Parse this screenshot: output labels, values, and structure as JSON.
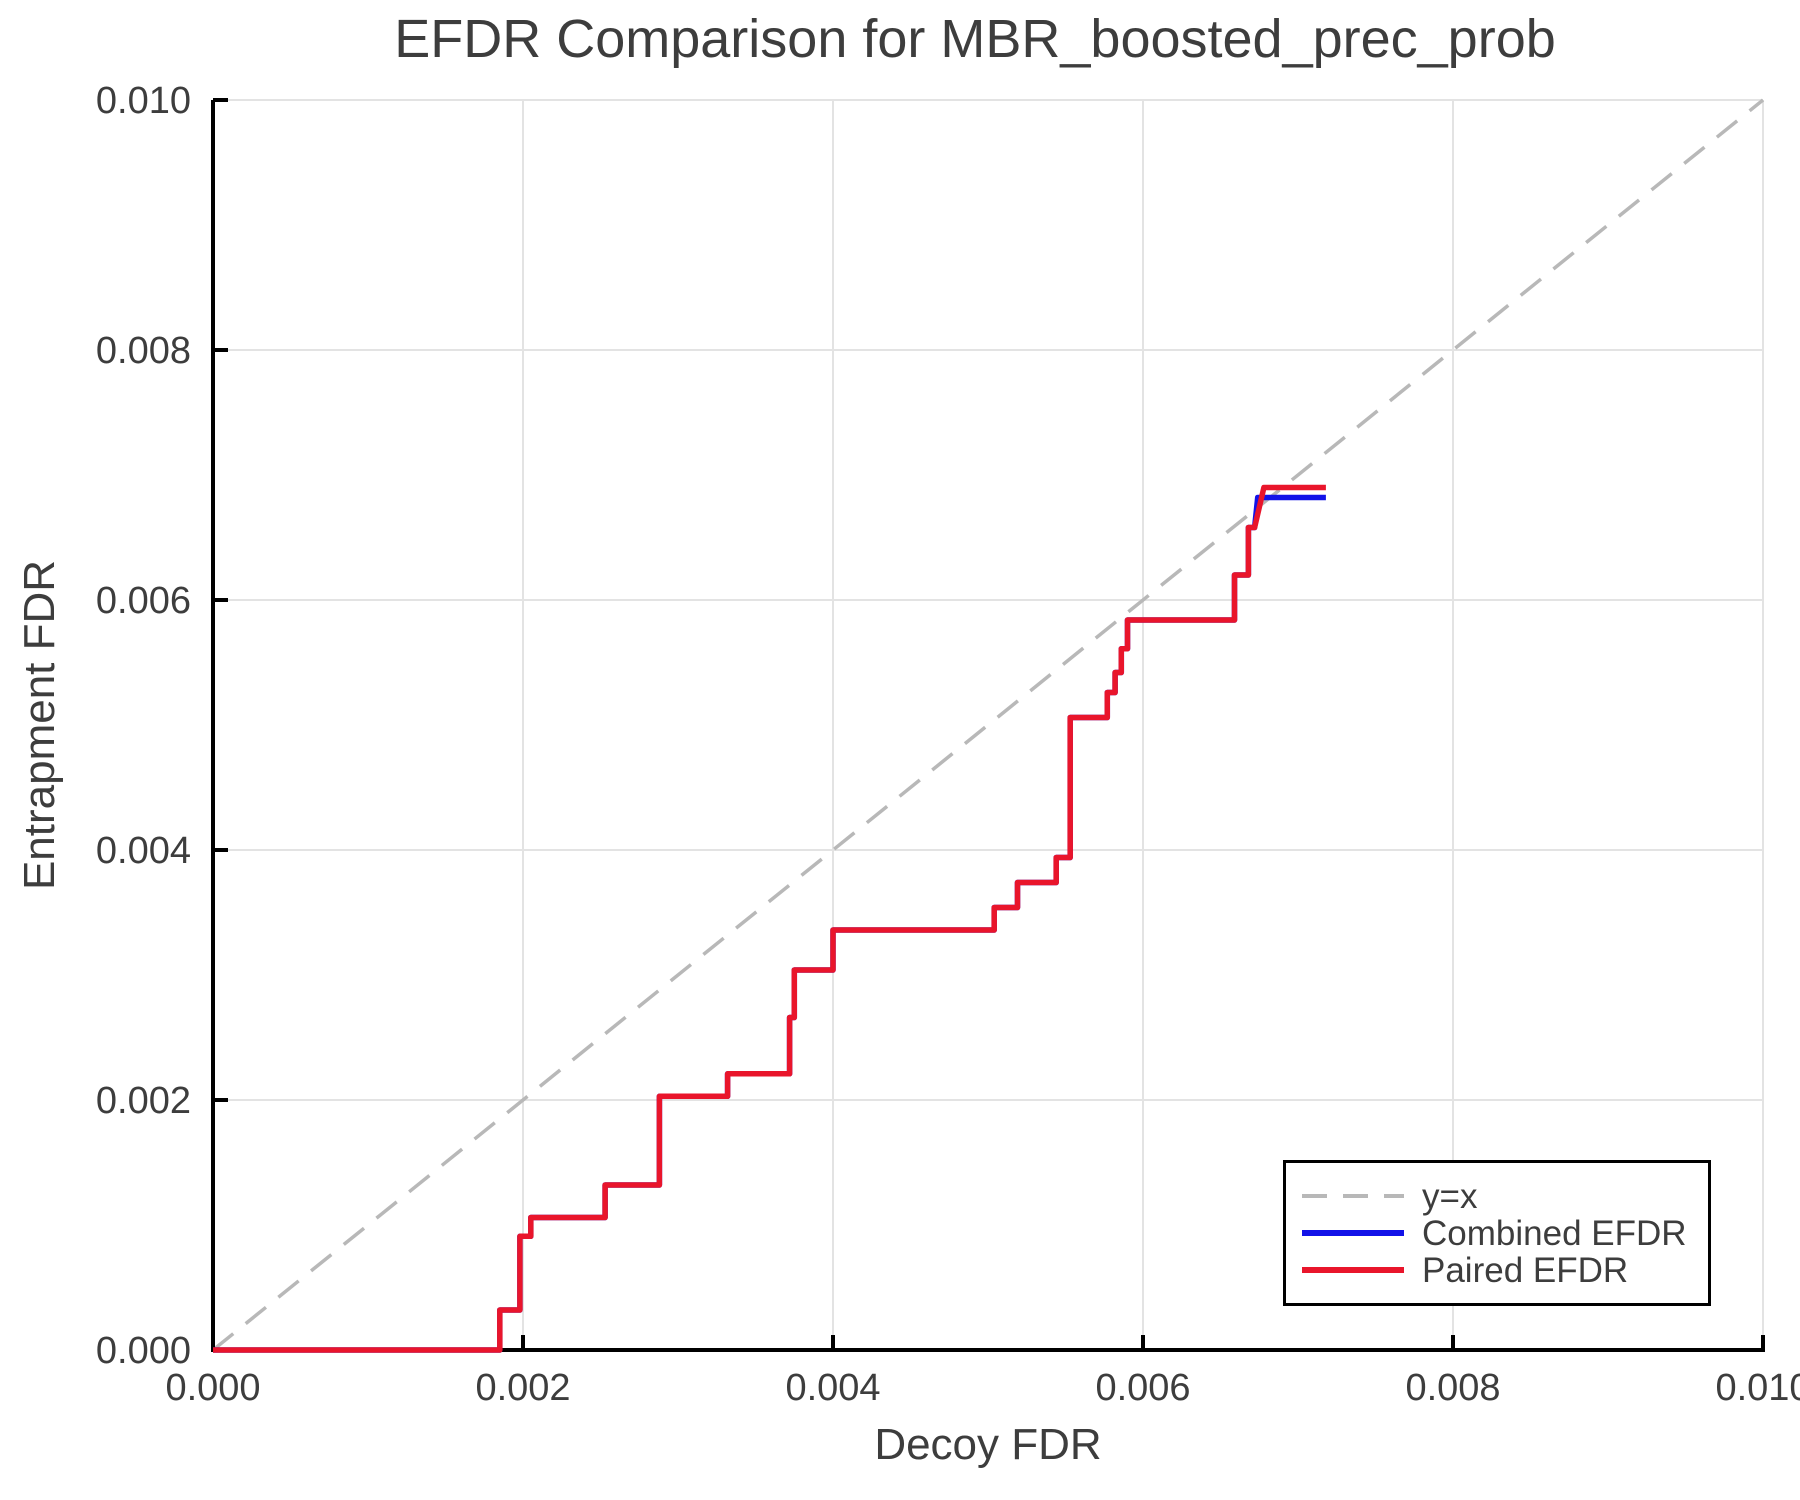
{
  "title": "EFDR Comparison for MBR_boosted_prec_prob",
  "colors": {
    "text": "#3d3d3d",
    "axis": "#000000",
    "grid": "#e3e3e3",
    "reference": "#b8b8b8",
    "combined": "#1212e8",
    "paired": "#e9152b",
    "legend_border": "#000000",
    "background": "#ffffff"
  },
  "chart_data": {
    "type": "line",
    "title": "EFDR Comparison for MBR_boosted_prec_prob",
    "xlabel": "Decoy FDR",
    "ylabel": "Entrapment FDR",
    "xlim": [
      0.0,
      0.01
    ],
    "ylim": [
      0.0,
      0.01
    ],
    "grid": true,
    "legend_position": "lower right",
    "x_ticks": {
      "values": [
        0.0,
        0.002,
        0.004,
        0.006,
        0.008,
        0.01
      ],
      "labels": [
        "0.000",
        "0.002",
        "0.004",
        "0.006",
        "0.008",
        "0.010"
      ]
    },
    "y_ticks": {
      "values": [
        0.0,
        0.002,
        0.004,
        0.006,
        0.008,
        0.01
      ],
      "labels": [
        "0.000",
        "0.002",
        "0.004",
        "0.006",
        "0.008",
        "0.010"
      ]
    },
    "reference_line": {
      "label": "y=x",
      "style": "dashed",
      "from": [
        0.0,
        0.0
      ],
      "to": [
        0.01,
        0.01
      ]
    },
    "series": [
      {
        "name": "Combined EFDR",
        "color_key": "combined",
        "points": [
          [
            0.0,
            0.0
          ],
          [
            0.00185,
            0.0
          ],
          [
            0.00185,
            0.00032
          ],
          [
            0.00198,
            0.00032
          ],
          [
            0.00198,
            0.00091
          ],
          [
            0.00205,
            0.00091
          ],
          [
            0.00205,
            0.00106
          ],
          [
            0.00253,
            0.00106
          ],
          [
            0.00253,
            0.00132
          ],
          [
            0.00288,
            0.00132
          ],
          [
            0.00288,
            0.00203
          ],
          [
            0.00332,
            0.00203
          ],
          [
            0.00332,
            0.00221
          ],
          [
            0.00372,
            0.00221
          ],
          [
            0.00372,
            0.00266
          ],
          [
            0.00375,
            0.00266
          ],
          [
            0.00375,
            0.00304
          ],
          [
            0.004,
            0.00304
          ],
          [
            0.004,
            0.00336
          ],
          [
            0.00504,
            0.00336
          ],
          [
            0.00504,
            0.00354
          ],
          [
            0.00519,
            0.00354
          ],
          [
            0.00519,
            0.00374
          ],
          [
            0.00544,
            0.00374
          ],
          [
            0.00544,
            0.00394
          ],
          [
            0.00553,
            0.00394
          ],
          [
            0.00553,
            0.00506
          ],
          [
            0.00577,
            0.00506
          ],
          [
            0.00577,
            0.00526
          ],
          [
            0.00582,
            0.00526
          ],
          [
            0.00582,
            0.00542
          ],
          [
            0.00586,
            0.00542
          ],
          [
            0.00586,
            0.00561
          ],
          [
            0.0059,
            0.00561
          ],
          [
            0.0059,
            0.00584
          ],
          [
            0.00659,
            0.00584
          ],
          [
            0.00659,
            0.0062
          ],
          [
            0.00668,
            0.0062
          ],
          [
            0.00668,
            0.00658
          ],
          [
            0.00672,
            0.00658
          ],
          [
            0.00674,
            0.00682
          ],
          [
            0.00718,
            0.00682
          ]
        ]
      },
      {
        "name": "Paired EFDR",
        "color_key": "paired",
        "points": [
          [
            0.0,
            0.0
          ],
          [
            0.00185,
            0.0
          ],
          [
            0.00185,
            0.00032
          ],
          [
            0.00198,
            0.00032
          ],
          [
            0.00198,
            0.00091
          ],
          [
            0.00205,
            0.00091
          ],
          [
            0.00205,
            0.00106
          ],
          [
            0.00253,
            0.00106
          ],
          [
            0.00253,
            0.00132
          ],
          [
            0.00288,
            0.00132
          ],
          [
            0.00288,
            0.00203
          ],
          [
            0.00332,
            0.00203
          ],
          [
            0.00332,
            0.00221
          ],
          [
            0.00372,
            0.00221
          ],
          [
            0.00372,
            0.00266
          ],
          [
            0.00375,
            0.00266
          ],
          [
            0.00375,
            0.00304
          ],
          [
            0.004,
            0.00304
          ],
          [
            0.004,
            0.00336
          ],
          [
            0.00504,
            0.00336
          ],
          [
            0.00504,
            0.00354
          ],
          [
            0.00519,
            0.00354
          ],
          [
            0.00519,
            0.00374
          ],
          [
            0.00544,
            0.00374
          ],
          [
            0.00544,
            0.00394
          ],
          [
            0.00553,
            0.00394
          ],
          [
            0.00553,
            0.00506
          ],
          [
            0.00577,
            0.00506
          ],
          [
            0.00577,
            0.00526
          ],
          [
            0.00582,
            0.00526
          ],
          [
            0.00582,
            0.00542
          ],
          [
            0.00586,
            0.00542
          ],
          [
            0.00586,
            0.00561
          ],
          [
            0.0059,
            0.00561
          ],
          [
            0.0059,
            0.00584
          ],
          [
            0.00659,
            0.00584
          ],
          [
            0.00659,
            0.0062
          ],
          [
            0.00668,
            0.0062
          ],
          [
            0.00668,
            0.00658
          ],
          [
            0.00672,
            0.00658
          ],
          [
            0.00678,
            0.0069
          ],
          [
            0.00718,
            0.0069
          ]
        ]
      }
    ]
  },
  "legend": {
    "items": [
      "y=x",
      "Combined EFDR",
      "Paired EFDR"
    ]
  }
}
